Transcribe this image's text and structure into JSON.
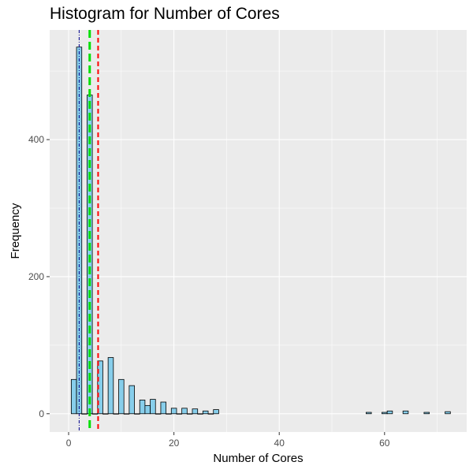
{
  "chart_data": {
    "type": "bar",
    "title": "Histogram for Number of Cores",
    "xlabel": "Number of Cores",
    "ylabel": "Frequency",
    "xlim": [
      -3.6,
      75.6
    ],
    "ylim": [
      -26.7,
      560
    ],
    "x_ticks": [
      0,
      20,
      40,
      60
    ],
    "y_ticks": [
      0,
      200,
      400
    ],
    "grid": true,
    "bin_width": 1,
    "colors": {
      "panel": "#ebebeb",
      "grid_major": "#ffffff",
      "bar_fill": "#87ceeb",
      "bar_stroke": "#000000",
      "mean_line": "#ff0000",
      "median_line": "#00e000",
      "mode_line": "#00008b"
    },
    "bins": [
      {
        "x": 1,
        "count": 50
      },
      {
        "x": 2,
        "count": 535
      },
      {
        "x": 3,
        "count": 0
      },
      {
        "x": 4,
        "count": 465
      },
      {
        "x": 5,
        "count": 0
      },
      {
        "x": 6,
        "count": 77
      },
      {
        "x": 7,
        "count": 0
      },
      {
        "x": 8,
        "count": 82
      },
      {
        "x": 9,
        "count": 0
      },
      {
        "x": 10,
        "count": 50
      },
      {
        "x": 11,
        "count": 0
      },
      {
        "x": 12,
        "count": 41
      },
      {
        "x": 13,
        "count": 0
      },
      {
        "x": 14,
        "count": 20
      },
      {
        "x": 15,
        "count": 12
      },
      {
        "x": 16,
        "count": 21
      },
      {
        "x": 17,
        "count": 0
      },
      {
        "x": 18,
        "count": 17
      },
      {
        "x": 19,
        "count": 0
      },
      {
        "x": 20,
        "count": 8
      },
      {
        "x": 21,
        "count": 0
      },
      {
        "x": 22,
        "count": 8
      },
      {
        "x": 23,
        "count": 0
      },
      {
        "x": 24,
        "count": 7
      },
      {
        "x": 25,
        "count": 0
      },
      {
        "x": 26,
        "count": 4
      },
      {
        "x": 27,
        "count": 0
      },
      {
        "x": 28,
        "count": 6
      },
      {
        "x": 57,
        "count": 2
      },
      {
        "x": 60,
        "count": 2
      },
      {
        "x": 61,
        "count": 4
      },
      {
        "x": 64,
        "count": 4
      },
      {
        "x": 68,
        "count": 2
      },
      {
        "x": 72,
        "count": 3
      }
    ],
    "reference_lines": [
      {
        "x": 2,
        "color": "#00008b",
        "dash": "dotted-dash",
        "width": 1
      },
      {
        "x": 4,
        "color": "#00e000",
        "dash": "long-dash",
        "width": 3
      },
      {
        "x": 5.6,
        "color": "#ff0000",
        "dash": "dash",
        "width": 2
      }
    ]
  }
}
